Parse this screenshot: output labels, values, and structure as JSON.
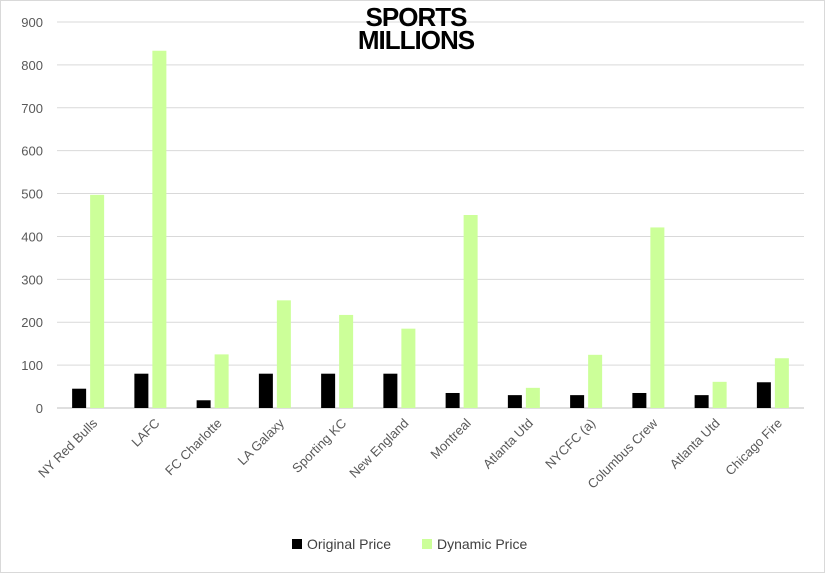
{
  "logo": {
    "line1": "SPORTS",
    "line2": "MILLIONS"
  },
  "chart_data": {
    "type": "bar",
    "title": "",
    "xlabel": "",
    "ylabel": "",
    "ylim": [
      0,
      900
    ],
    "yticks": [
      0,
      100,
      200,
      300,
      400,
      500,
      600,
      700,
      800,
      900
    ],
    "grid": true,
    "legend_position": "bottom",
    "categories": [
      "NY Red Bulls",
      "LAFC",
      "FC Charlotte",
      "LA Galaxy",
      "Sporting KC",
      "New England",
      "Montreal",
      "Atlanta Utd",
      "NYCFC (a)",
      "Columbus Crew",
      "Atlanta Utd",
      "Chicago Fire"
    ],
    "series": [
      {
        "name": "Original Price",
        "color": "#000000",
        "values": [
          45,
          80,
          18,
          80,
          80,
          80,
          35,
          30,
          30,
          35,
          30,
          60
        ]
      },
      {
        "name": "Dynamic Price",
        "color": "#ccff99",
        "values": [
          497,
          833,
          125,
          251,
          217,
          185,
          450,
          47,
          124,
          421,
          61,
          116
        ]
      }
    ]
  }
}
